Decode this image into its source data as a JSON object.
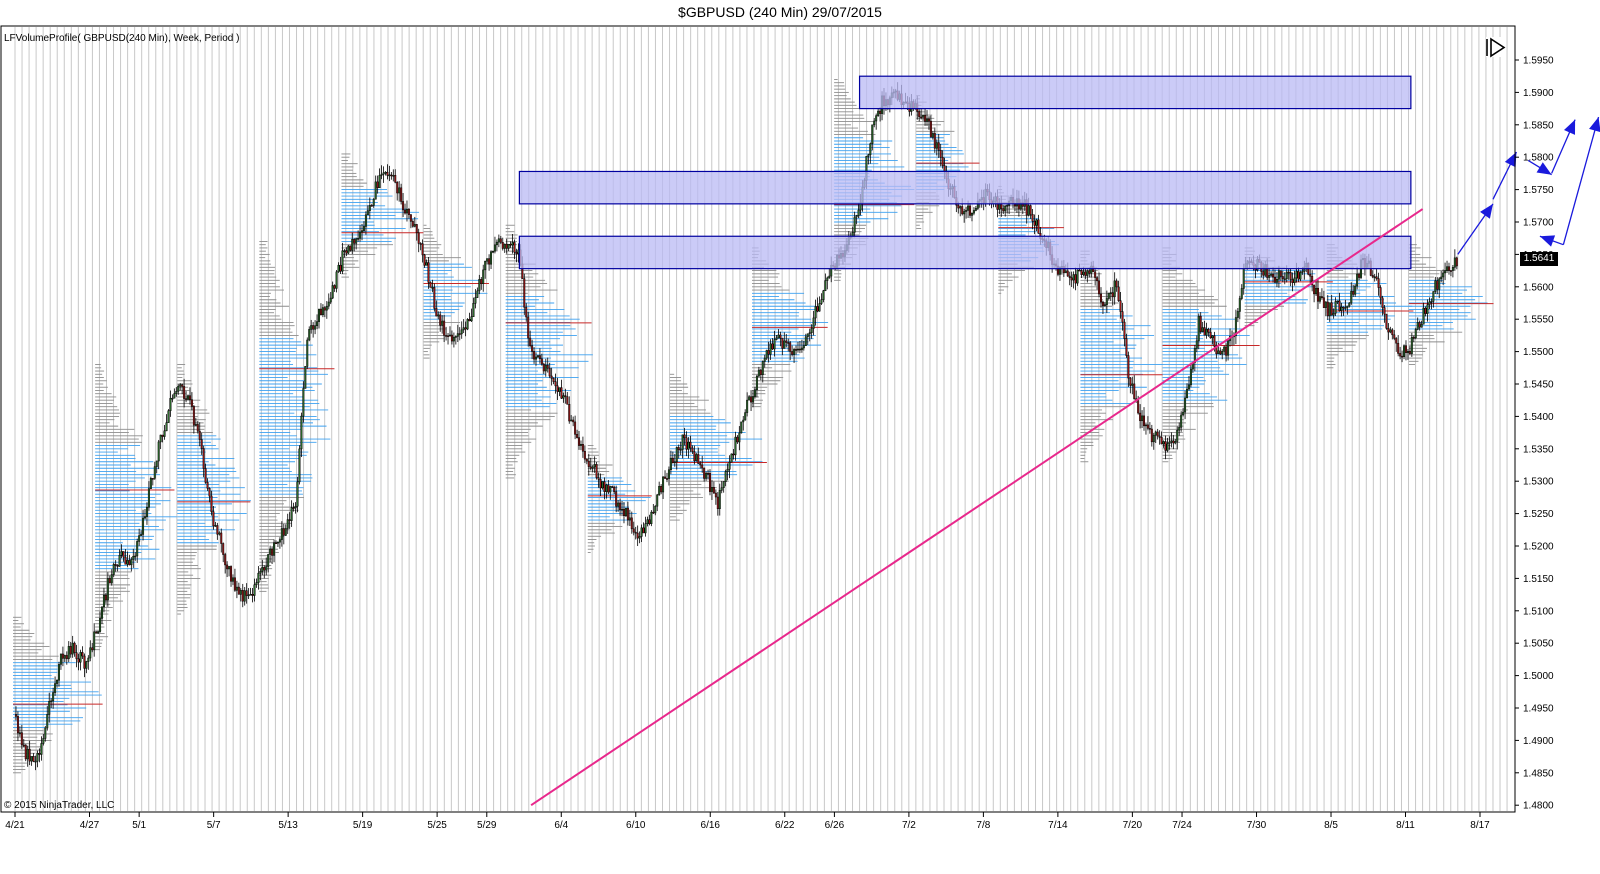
{
  "title": "$GBPUSD (240 Min)  29/07/2015",
  "indicator_label": "LFVolumeProfile( GBPUSD(240 Min), Week, Period )",
  "copyright": "© 2015 NinjaTrader, LLC",
  "current_price": "1.5641",
  "chart_data": {
    "type": "candlestick",
    "symbol": "GBPUSD",
    "x_tick_labels": [
      "4/21",
      "4/27",
      "5/1",
      "5/7",
      "5/13",
      "5/19",
      "5/25",
      "5/29",
      "6/4",
      "6/10",
      "6/16",
      "6/22",
      "6/26",
      "7/2",
      "7/8",
      "7/14",
      "7/20",
      "7/24",
      "7/30",
      "8/5",
      "8/11",
      "8/17"
    ],
    "y_tick_labels": [
      "1.4800",
      "1.4850",
      "1.4900",
      "1.4950",
      "1.5000",
      "1.5050",
      "1.5100",
      "1.5150",
      "1.5200",
      "1.5250",
      "1.5300",
      "1.5350",
      "1.5400",
      "1.5450",
      "1.5500",
      "1.5550",
      "1.5600",
      "1.5650",
      "1.5700",
      "1.5750",
      "1.5800",
      "1.5850",
      "1.5900",
      "1.5950"
    ],
    "ylim": [
      1.4795,
      1.5985
    ],
    "xlim_days": [
      0,
      119
    ],
    "price_path": [
      [
        0,
        1.494
      ],
      [
        1,
        1.488
      ],
      [
        2,
        1.4875
      ],
      [
        3,
        1.495
      ],
      [
        4,
        1.5025
      ],
      [
        5,
        1.504
      ],
      [
        6,
        1.502
      ],
      [
        7,
        1.5065
      ],
      [
        8,
        1.514
      ],
      [
        9,
        1.5185
      ],
      [
        10,
        1.517
      ],
      [
        11,
        1.5235
      ],
      [
        12,
        1.533
      ],
      [
        13,
        1.54
      ],
      [
        14,
        1.5455
      ],
      [
        15,
        1.542
      ],
      [
        16,
        1.534
      ],
      [
        17,
        1.524
      ],
      [
        18,
        1.518
      ],
      [
        19,
        1.513
      ],
      [
        20,
        1.512
      ],
      [
        21,
        1.5155
      ],
      [
        22,
        1.5195
      ],
      [
        23,
        1.5225
      ],
      [
        24,
        1.526
      ],
      [
        25,
        1.5525
      ],
      [
        26,
        1.5555
      ],
      [
        27,
        1.5585
      ],
      [
        28,
        1.5645
      ],
      [
        29,
        1.567
      ],
      [
        30,
        1.571
      ],
      [
        31,
        1.576
      ],
      [
        32,
        1.578
      ],
      [
        33,
        1.5735
      ],
      [
        34,
        1.57
      ],
      [
        35,
        1.564
      ],
      [
        36,
        1.5565
      ],
      [
        37,
        1.5515
      ],
      [
        38,
        1.5535
      ],
      [
        39,
        1.5555
      ],
      [
        40,
        1.5625
      ],
      [
        41,
        1.5665
      ],
      [
        42,
        1.567
      ],
      [
        43,
        1.5655
      ],
      [
        44,
        1.55
      ],
      [
        45,
        1.548
      ],
      [
        46,
        1.5455
      ],
      [
        47,
        1.542
      ],
      [
        48,
        1.537
      ],
      [
        49,
        1.533
      ],
      [
        50,
        1.53
      ],
      [
        51,
        1.528
      ],
      [
        52,
        1.5255
      ],
      [
        53,
        1.5215
      ],
      [
        54,
        1.5235
      ],
      [
        55,
        1.5285
      ],
      [
        56,
        1.5325
      ],
      [
        57,
        1.5365
      ],
      [
        58,
        1.534
      ],
      [
        59,
        1.531
      ],
      [
        60,
        1.5265
      ],
      [
        61,
        1.5325
      ],
      [
        62,
        1.539
      ],
      [
        63,
        1.544
      ],
      [
        64,
        1.5485
      ],
      [
        65,
        1.552
      ],
      [
        66,
        1.5505
      ],
      [
        67,
        1.55
      ],
      [
        68,
        1.5545
      ],
      [
        69,
        1.56
      ],
      [
        70,
        1.5635
      ],
      [
        71,
        1.5655
      ],
      [
        72,
        1.572
      ],
      [
        73,
        1.583
      ],
      [
        74,
        1.5885
      ],
      [
        75,
        1.5895
      ],
      [
        76,
        1.5885
      ],
      [
        77,
        1.587
      ],
      [
        78,
        1.5845
      ],
      [
        79,
        1.5795
      ],
      [
        80,
        1.5745
      ],
      [
        81,
        1.5715
      ],
      [
        82,
        1.5725
      ],
      [
        83,
        1.5745
      ],
      [
        84,
        1.5725
      ],
      [
        85,
        1.573
      ],
      [
        86,
        1.573
      ],
      [
        87,
        1.57
      ],
      [
        88,
        1.5665
      ],
      [
        89,
        1.5625
      ],
      [
        90,
        1.5615
      ],
      [
        91,
        1.5615
      ],
      [
        92,
        1.563
      ],
      [
        93,
        1.5565
      ],
      [
        94,
        1.561
      ],
      [
        95,
        1.547
      ],
      [
        96,
        1.54
      ],
      [
        97,
        1.537
      ],
      [
        98,
        1.5355
      ],
      [
        99,
        1.536
      ],
      [
        100,
        1.544
      ],
      [
        101,
        1.5545
      ],
      [
        102,
        1.5525
      ],
      [
        103,
        1.549
      ],
      [
        104,
        1.553
      ],
      [
        105,
        1.5635
      ],
      [
        106,
        1.5635
      ],
      [
        107,
        1.562
      ],
      [
        108,
        1.5615
      ],
      [
        109,
        1.561
      ],
      [
        110,
        1.5635
      ],
      [
        111,
        1.559
      ],
      [
        112,
        1.5565
      ],
      [
        113,
        1.557
      ],
      [
        114,
        1.5585
      ],
      [
        115,
        1.564
      ],
      [
        116,
        1.562
      ],
      [
        117,
        1.5535
      ],
      [
        118,
        1.55
      ],
      [
        119,
        1.5505
      ],
      [
        120,
        1.555
      ],
      [
        121,
        1.5595
      ],
      [
        122,
        1.562
      ],
      [
        123,
        1.5641
      ]
    ],
    "date_axis_start": "4/21",
    "resistance_zones": [
      {
        "x_start": 72,
        "x_end": 119,
        "y_low": 1.5875,
        "y_high": 1.5925
      },
      {
        "x_start": 43,
        "x_end": 119,
        "y_low": 1.5728,
        "y_high": 1.5778
      },
      {
        "x_start": 43,
        "x_end": 119,
        "y_low": 1.5628,
        "y_high": 1.5678
      }
    ],
    "trendline": {
      "x1": 44,
      "y1": 1.48,
      "x2": 120,
      "y2": 1.572
    },
    "projection_arrows": [
      [
        [
          123,
          1.565
        ],
        [
          126,
          1.5728
        ]
      ],
      [
        [
          126,
          1.5735
        ],
        [
          128,
          1.5808
        ]
      ],
      [
        [
          129,
          1.5795
        ],
        [
          131,
          1.5773
        ]
      ],
      [
        [
          131,
          1.5775
        ],
        [
          133,
          1.5858
        ]
      ],
      [
        [
          132,
          1.5665
        ],
        [
          130,
          1.5678
        ]
      ],
      [
        [
          132,
          1.5665
        ],
        [
          135,
          1.5862
        ]
      ]
    ],
    "colors": {
      "zone_fill": "#b9b9f4",
      "zone_border": "#0000a0",
      "trendline": "#e8288c",
      "arrow": "#1a1adc",
      "profile_blue": "#3ca0f0",
      "profile_gray": "#8c8c8c",
      "poc_red": "#c82828",
      "candle_up": "#2e6e2e",
      "candle_down": "#a01818"
    }
  }
}
